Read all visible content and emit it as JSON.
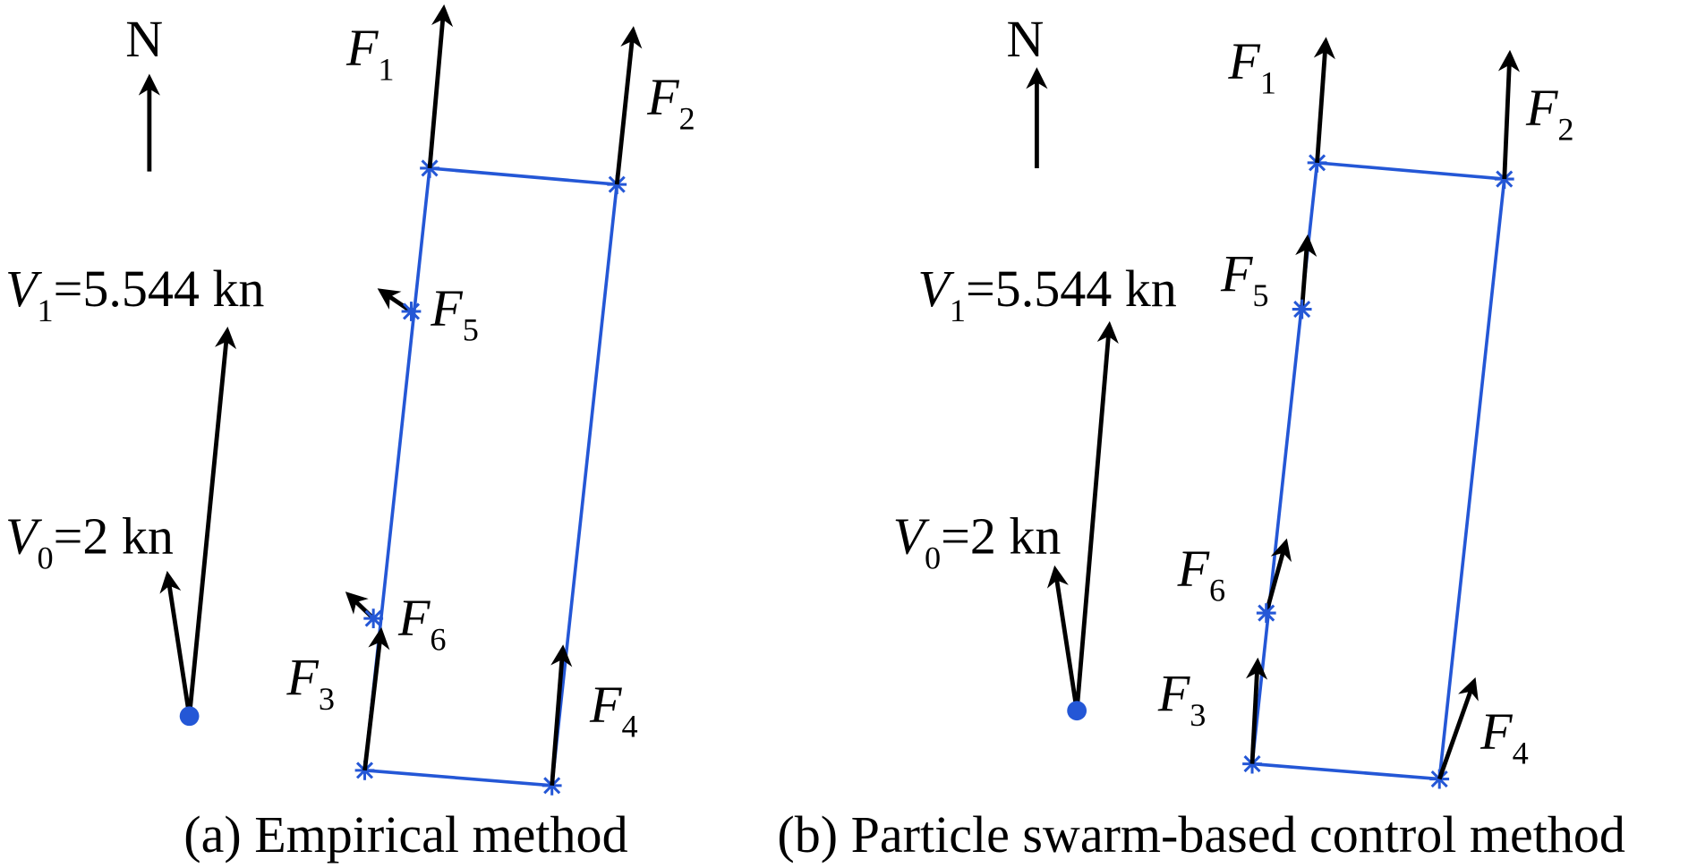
{
  "panels": [
    {
      "north": "N",
      "velocities": [
        {
          "symbol": "V",
          "subscript": "1",
          "rest": "=5.544 kn"
        },
        {
          "symbol": "V",
          "subscript": "0",
          "rest": "=2 kn"
        }
      ],
      "forces": [
        {
          "symbol": "F",
          "subscript": "1"
        },
        {
          "symbol": "F",
          "subscript": "2"
        },
        {
          "symbol": "F",
          "subscript": "3"
        },
        {
          "symbol": "F",
          "subscript": "4"
        },
        {
          "symbol": "F",
          "subscript": "5"
        },
        {
          "symbol": "F",
          "subscript": "6"
        }
      ],
      "caption": "(a) Empirical method"
    },
    {
      "north": "N",
      "velocities": [
        {
          "symbol": "V",
          "subscript": "1",
          "rest": "=5.544 kn"
        },
        {
          "symbol": "V",
          "subscript": "0",
          "rest": "=2 kn"
        }
      ],
      "forces": [
        {
          "symbol": "F",
          "subscript": "1"
        },
        {
          "symbol": "F",
          "subscript": "2"
        },
        {
          "symbol": "F",
          "subscript": "3"
        },
        {
          "symbol": "F",
          "subscript": "4"
        },
        {
          "symbol": "F",
          "subscript": "5"
        },
        {
          "symbol": "F",
          "subscript": "6"
        }
      ],
      "caption": "(b) Particle swarm-based control method"
    }
  ]
}
